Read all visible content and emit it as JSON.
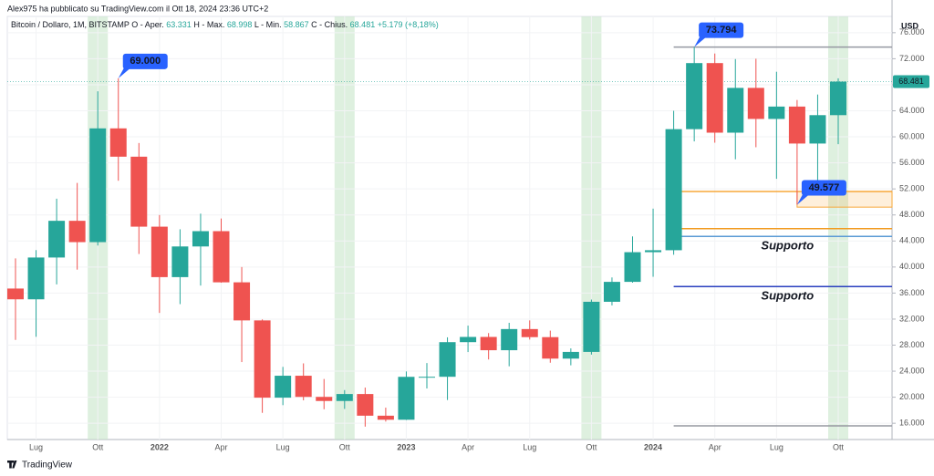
{
  "header": "Alex975 ha pubblicato su TradingView.com il Ott 18, 2024 23:36 UTC+2",
  "footer": "TradingView",
  "chart_data": {
    "type": "candlestick",
    "title": "Bitcoin / Dollaro, 1M, BITSTAMP",
    "legend": [
      {
        "key": "O - Aper.",
        "val": "63.331"
      },
      {
        "key": "H - Max.",
        "val": "68.998"
      },
      {
        "key": "L - Min.",
        "val": "58.867"
      },
      {
        "key": "C - Chius.",
        "val": "68.481"
      }
    ],
    "change": "+5.179 (+8,18%)",
    "currency": "USD",
    "last_price_label": "68.481",
    "up_color": "#26a69a",
    "down_color": "#ef5350",
    "grid": true,
    "x": [
      "2021-06",
      "2021-07",
      "2021-08",
      "2021-09",
      "2021-10",
      "2021-11",
      "2021-12",
      "2022-01",
      "2022-02",
      "2022-03",
      "2022-04",
      "2022-05",
      "2022-06",
      "2022-07",
      "2022-08",
      "2022-09",
      "2022-10",
      "2022-11",
      "2022-12",
      "2023-01",
      "2023-02",
      "2023-03",
      "2023-04",
      "2023-05",
      "2023-06",
      "2023-07",
      "2023-08",
      "2023-09",
      "2023-10",
      "2023-11",
      "2023-12",
      "2024-01",
      "2024-02",
      "2024-03",
      "2024-04",
      "2024-05",
      "2024-06",
      "2024-07",
      "2024-08",
      "2024-09",
      "2024-10"
    ],
    "open": [
      36694,
      35040,
      41461,
      47100,
      43824,
      61300,
      56950,
      46200,
      38450,
      43160,
      45510,
      37650,
      31800,
      19930,
      23300,
      20050,
      19420,
      20490,
      17160,
      16540,
      23130,
      23140,
      28460,
      29260,
      27220,
      30470,
      29230,
      25930,
      26960,
      34660,
      37720,
      42280,
      42580,
      61180,
      71330,
      60640,
      67520,
      62750,
      64650,
      58970,
      63331
    ],
    "high": [
      41330,
      42599,
      50500,
      52920,
      67000,
      69000,
      59050,
      47990,
      45800,
      48200,
      47450,
      40000,
      31950,
      24660,
      25200,
      22800,
      21100,
      21480,
      18400,
      23960,
      25250,
      29200,
      31000,
      29850,
      31430,
      31800,
      30230,
      27500,
      35000,
      38400,
      44700,
      48970,
      64000,
      73794,
      72800,
      71950,
      72000,
      70000,
      65660,
      66500,
      68998
    ],
    "low": [
      28800,
      29278,
      37332,
      39600,
      43300,
      53256,
      42000,
      32950,
      34300,
      37150,
      37600,
      25400,
      17600,
      18780,
      19520,
      18150,
      18200,
      15480,
      16260,
      16500,
      21350,
      19570,
      26940,
      25800,
      24750,
      28860,
      25300,
      24900,
      26550,
      34100,
      37600,
      38500,
      41880,
      59300,
      59100,
      56550,
      58400,
      53550,
      49577,
      52600,
      58867
    ],
    "close": [
      35040,
      41461,
      47100,
      43824,
      61300,
      56950,
      46200,
      38450,
      43160,
      45510,
      37650,
      31800,
      19930,
      23300,
      20050,
      19420,
      20490,
      17160,
      16540,
      23130,
      23140,
      28460,
      29260,
      27220,
      30470,
      29230,
      25930,
      26960,
      34660,
      37720,
      42280,
      42580,
      61180,
      71330,
      60640,
      67520,
      62750,
      64650,
      58970,
      63331,
      68481
    ],
    "ylim": [
      13500,
      78500
    ],
    "yticks": [
      {
        "value": 16000,
        "label": "16.000"
      },
      {
        "value": 20000,
        "label": "20.000"
      },
      {
        "value": 24000,
        "label": "24.000"
      },
      {
        "value": 28000,
        "label": "28.000"
      },
      {
        "value": 32000,
        "label": "32.000"
      },
      {
        "value": 36000,
        "label": "36.000"
      },
      {
        "value": 40000,
        "label": "40.000"
      },
      {
        "value": 44000,
        "label": "44.000"
      },
      {
        "value": 48000,
        "label": "48.000"
      },
      {
        "value": 52000,
        "label": "52.000"
      },
      {
        "value": 56000,
        "label": "56.000"
      },
      {
        "value": 60000,
        "label": "60.000"
      },
      {
        "value": 64000,
        "label": "64.000"
      },
      {
        "value": 68000,
        "label": "68.000"
      },
      {
        "value": 72000,
        "label": "72.000"
      },
      {
        "value": 76000,
        "label": "76.000"
      }
    ],
    "xticks": [
      {
        "value": "2021-07",
        "label": "Lug"
      },
      {
        "value": "2021-10",
        "label": "Ott"
      },
      {
        "value": "2022-01",
        "label": "2022"
      },
      {
        "value": "2022-04",
        "label": "Apr"
      },
      {
        "value": "2022-07",
        "label": "Lug"
      },
      {
        "value": "2022-10",
        "label": "Ott"
      },
      {
        "value": "2023-01",
        "label": "2023"
      },
      {
        "value": "2023-04",
        "label": "Apr"
      },
      {
        "value": "2023-07",
        "label": "Lug"
      },
      {
        "value": "2023-10",
        "label": "Ott"
      },
      {
        "value": "2024-01",
        "label": "2024"
      },
      {
        "value": "2024-04",
        "label": "Apr"
      },
      {
        "value": "2024-07",
        "label": "Lug"
      },
      {
        "value": "2024-10",
        "label": "Ott"
      }
    ],
    "highlight_months": [
      "2021-10",
      "2022-10",
      "2023-10",
      "2024-10"
    ],
    "highlight_color": "#c8e6c9",
    "levels": [
      {
        "value": 73794,
        "from": "2024-02",
        "color": "#9598a1"
      },
      {
        "value": 51600,
        "from": "2024-02",
        "color": "#f7a83a"
      },
      {
        "value": 45900,
        "from": "2024-02",
        "color": "#f29a1e"
      },
      {
        "value": 44700,
        "from": "2024-02",
        "color": "#5b9bd5",
        "label": "Supporto"
      },
      {
        "value": 37000,
        "from": "2024-02",
        "color": "#2a3fbf",
        "label": "Supporto"
      },
      {
        "value": 15600,
        "from": "2024-02",
        "color": "#9598a1"
      }
    ],
    "zone": {
      "from": "2024-08",
      "low": 49200,
      "high": 51600,
      "color": "#f7a83a"
    },
    "callouts": [
      {
        "x": "2021-11",
        "value": 69000,
        "text": "69.000"
      },
      {
        "x": "2024-03",
        "value": 73794,
        "text": "73.794"
      },
      {
        "x": "2024-08",
        "value": 49577,
        "text": "49.577"
      }
    ],
    "callout_color": "#2962ff"
  }
}
